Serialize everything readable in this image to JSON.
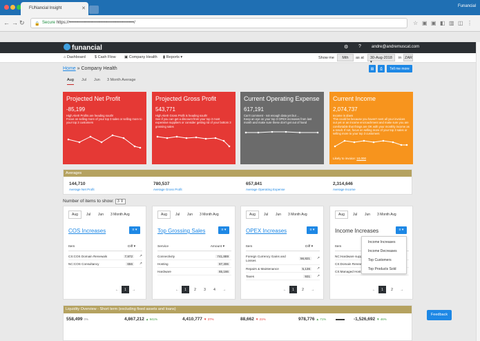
{
  "browser": {
    "tab_title": "FUNancial Insight",
    "profile": "Funancial",
    "url_secure": "Secure",
    "url_text": "https://•••••••••••••••••••••••••••••••••••••••••••••/"
  },
  "app": {
    "logo": "funancial",
    "user_email": "andre@andremuscat.com"
  },
  "menu": {
    "dashboard": "Dashboard",
    "cash_flow": "Cash Flow",
    "company_health": "Company Health",
    "reports": "Reports",
    "show_me": "Show me",
    "period": "Mth",
    "as_at": "as at",
    "date": "30-Aug-2018",
    "in": "in",
    "currency": "ZAR"
  },
  "breadcrumb": {
    "home": "Home",
    "sep": "»",
    "current": "Company Health"
  },
  "tell_me_more": "Tell me more",
  "period_tabs": [
    "Aug",
    "Jul",
    "Jun",
    "3 Month Average"
  ],
  "kpis": [
    {
      "title": "Projected Net Profit",
      "value": "-85,199",
      "headline": "High Alert! Profits are heading south!",
      "desc": "Focus on selling more of your top 3 sales or selling more to your top 3 customers",
      "color": "#e53935"
    },
    {
      "title": "Projected Gross Profit",
      "value": "543,771",
      "headline": "High Alert! Gross Profit is heading south!",
      "desc": "See if you can get a discount from your top 3 most expensive suppliers or consider getting rid of your bottom 3 grossing sales",
      "color": "#e53935"
    },
    {
      "title": "Current Operating Expense",
      "value": "617,191",
      "headline": "Can't comment - not enough data yet but ...",
      "desc": "Keep an eye on your top 3 OPEX increases from last month and make sure these don't get out of hand",
      "color": "#6b6b6b"
    },
    {
      "title": "Current Income",
      "value": "2,074,737",
      "headline": "Income is down",
      "desc": "This could be because you haven't sent all your invoices out yet or an income encroachment and make sure you are comfortable that things are OK with your monthly income as a result. If not, focus on selling more of your top 3 sales or selling more to your top 3 customers",
      "color": "#f7941d",
      "link_label": "Likely to invoice:",
      "link_value": "10,000"
    }
  ],
  "averages": {
    "title": "Averages",
    "items": [
      {
        "value": "144,710",
        "label": "Average Net Profit"
      },
      {
        "value": "780,537",
        "label": "Average Gross Profit"
      },
      {
        "value": "657,841",
        "label": "Average Operating Expense"
      },
      {
        "value": "2,314,646",
        "label": "Average Income"
      }
    ]
  },
  "items_to_show": {
    "label": "Number of items to show:",
    "value": "3"
  },
  "panels": [
    {
      "title": "COS Increases",
      "col1": "Item",
      "col2": "Diff",
      "rows": [
        {
          "name": "CS:COS Domain Renewals",
          "value": "7,972"
        },
        {
          "name": "NC:COS Consultancy",
          "value": "656"
        }
      ],
      "pages": [
        "←",
        "1",
        "→"
      ],
      "active_page": "1"
    },
    {
      "title": "Top Grossing Sales",
      "col1": "Service",
      "col2": "Amount",
      "rows": [
        {
          "name": "Connectivity",
          "value": "741,889"
        },
        {
          "name": "Hosting",
          "value": "87,306"
        },
        {
          "name": "Hardware",
          "value": "65,166"
        }
      ],
      "pages": [
        "←",
        "1",
        "2",
        "3",
        "4",
        "→"
      ],
      "active_page": "1"
    },
    {
      "title": "OPEX Increases",
      "col1": "Item",
      "col2": "Diff",
      "rows": [
        {
          "name": "Foreign Currency Gains and Losses",
          "value": "56,821"
        },
        {
          "name": "Repairs & Maintenance",
          "value": "5,136"
        },
        {
          "name": "Taxes",
          "value": "931"
        }
      ],
      "pages": [
        "←",
        "1",
        "2",
        "→"
      ],
      "active_page": "1"
    },
    {
      "title": "Income Increases",
      "col1": "Item",
      "col2": "",
      "rows": [
        {
          "name": "NC:Hardware supp",
          "value": ""
        },
        {
          "name": "CS:Domain Renew",
          "value": ""
        },
        {
          "name": "CS:Managed Host",
          "value": ""
        }
      ],
      "pages": [
        "←",
        "1",
        "2",
        "→"
      ],
      "active_page": "1"
    }
  ],
  "panel_tabs": [
    "Aug",
    "Jul",
    "Jun",
    "3 Month Avg"
  ],
  "dropdown": [
    "Income Increases",
    "Income Decreases",
    "Top Customers",
    "Top Products Sold"
  ],
  "liquidity": {
    "title": "Liquidity Overview - Short term (excluding fixed assets and loans)",
    "items": [
      {
        "value": "558,499",
        "change": "0%",
        "color": "#888"
      },
      {
        "value": "4,867,212",
        "change": "▲ 941%",
        "color": "#43a047"
      },
      {
        "value": "4,410,777",
        "change": "▼ 37%",
        "color": "#e53935"
      },
      {
        "value": "88,662",
        "change": "▼ 21%",
        "color": "#e53935"
      },
      {
        "value": "978,776",
        "change": "▲ 71%",
        "color": "#43a047"
      },
      {
        "value": "▬▬",
        "change": "",
        "color": "#333"
      },
      {
        "value": "-1,526,692",
        "change": "▼ 46%",
        "color": "#43a047"
      }
    ]
  },
  "feedback": "Feedback"
}
